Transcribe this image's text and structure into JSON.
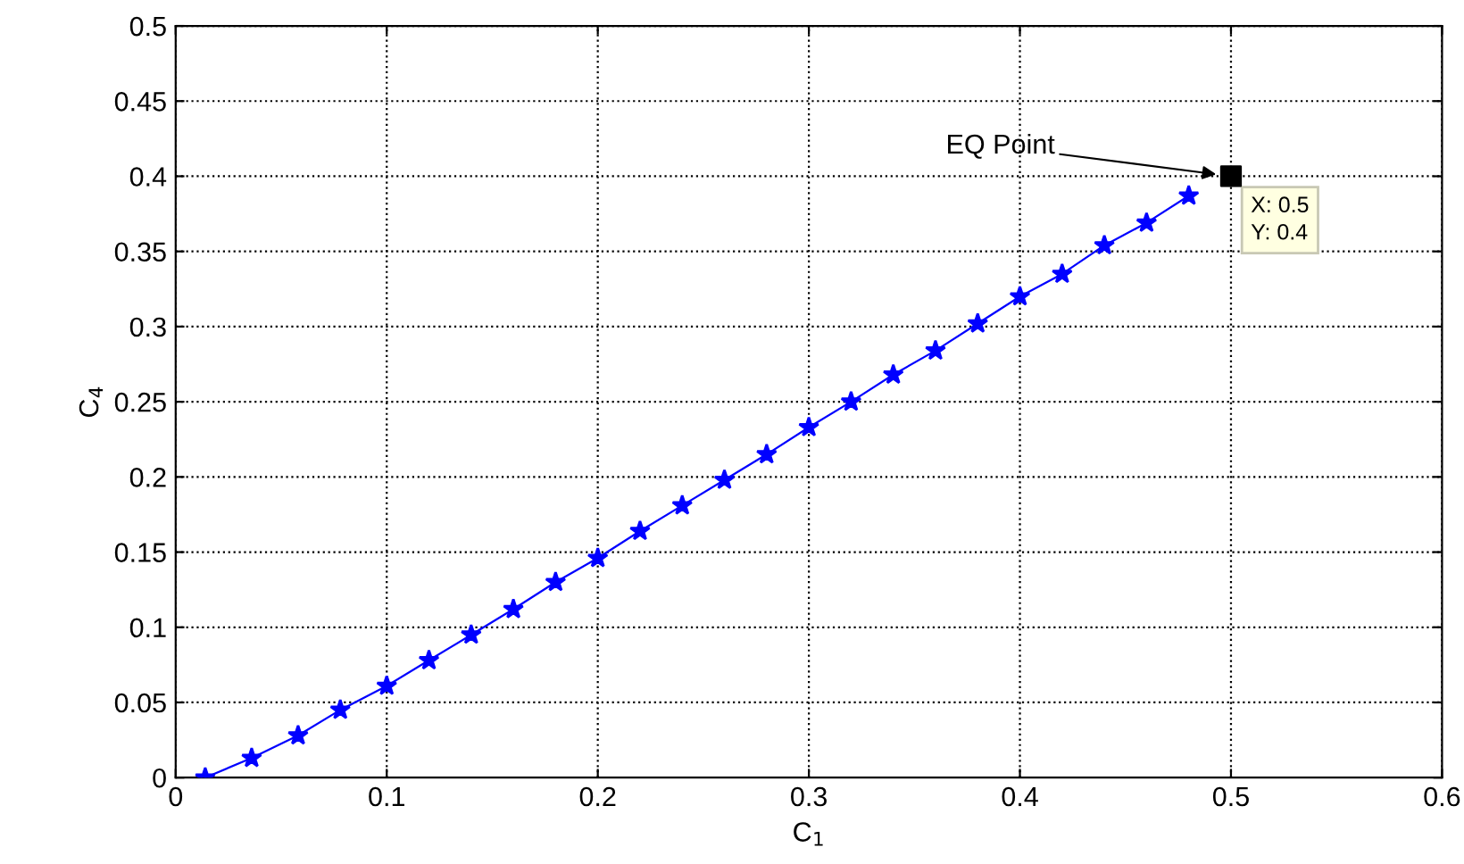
{
  "chart_data": {
    "type": "line",
    "xlabel": "C$_{1}$",
    "ylabel": "C$_{4}$",
    "xlim": [
      0,
      0.6
    ],
    "ylim": [
      0,
      0.5
    ],
    "xticks": [
      0,
      0.1,
      0.2,
      0.3,
      0.4,
      0.5,
      0.6
    ],
    "yticks": [
      0,
      0.05,
      0.1,
      0.15,
      0.2,
      0.25,
      0.3,
      0.35,
      0.4,
      0.45,
      0.5
    ],
    "grid": true,
    "line_style": "solid",
    "series": [
      {
        "marker": "star",
        "color": "#0000ff",
        "x": [
          0.014,
          0.036,
          0.058,
          0.078,
          0.1,
          0.12,
          0.14,
          0.16,
          0.18,
          0.2,
          0.22,
          0.24,
          0.26,
          0.28,
          0.3,
          0.32,
          0.34,
          0.36,
          0.38,
          0.4,
          0.42,
          0.44,
          0.46,
          0.48
        ],
        "values": [
          0,
          0.013,
          0.028,
          0.045,
          0.061,
          0.078,
          0.095,
          0.112,
          0.13,
          0.146,
          0.164,
          0.181,
          0.198,
          0.215,
          0.233,
          0.25,
          0.268,
          0.284,
          0.302,
          0.32,
          0.335,
          0.354,
          0.369,
          0.387
        ]
      },
      {
        "type": "scatter",
        "marker": "square",
        "color": "#000000",
        "x": [
          0.5
        ],
        "values": [
          0.4
        ]
      }
    ],
    "annotations": [
      "EQ Point",
      {
        "text": "X: 0.5\nY: 0.4",
        "x": 0.5,
        "y": 0.4
      }
    ]
  }
}
